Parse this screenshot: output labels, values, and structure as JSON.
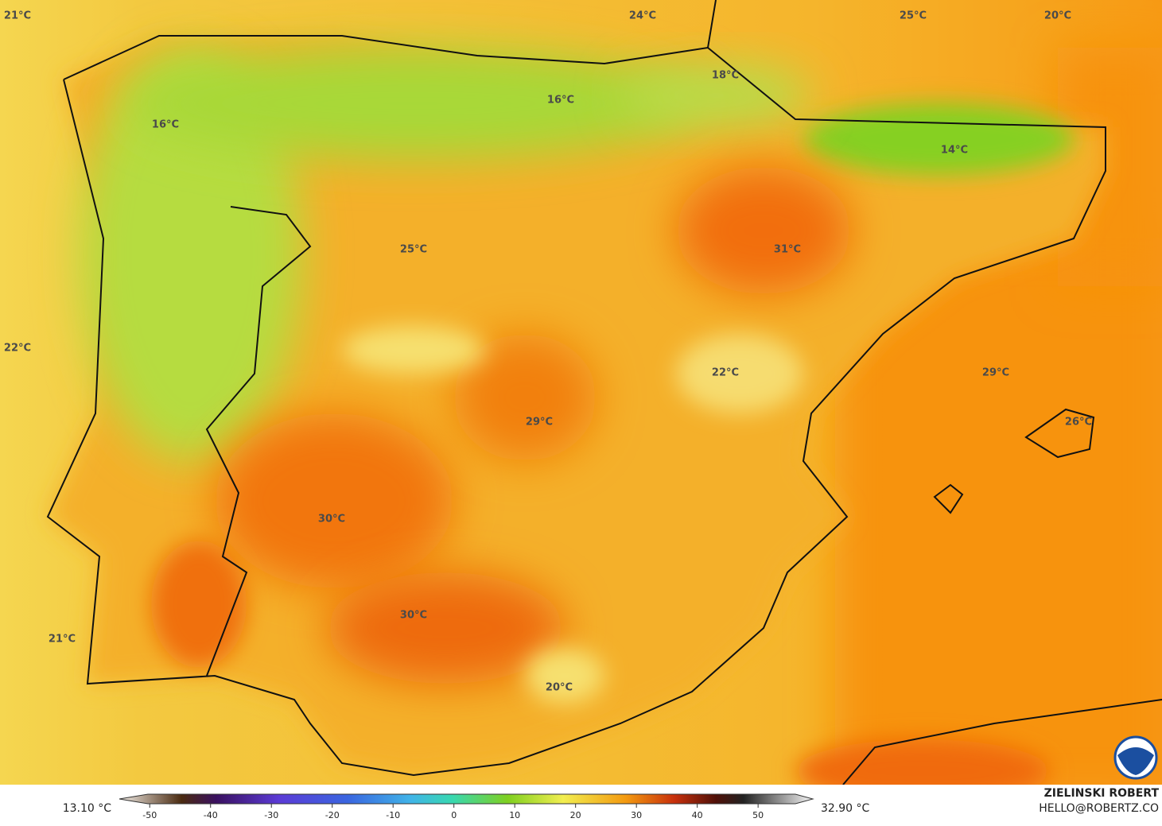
{
  "map_labels": [
    "21°C",
    "24°C",
    "25°C",
    "20°C",
    "18°C",
    "16°C",
    "16°C",
    "14°C",
    "25°C",
    "31°C",
    "22°C",
    "22°C",
    "29°C",
    "29°C",
    "26°C",
    "30°C",
    "30°C",
    "21°C",
    "20°C"
  ],
  "colorbar": {
    "min_label": "13.10 °C",
    "max_label": "32.90 °C",
    "range": [
      -55,
      59
    ],
    "ticks": [
      -50,
      -40,
      -30,
      -20,
      -10,
      0,
      10,
      20,
      30,
      40,
      50
    ]
  },
  "credit": {
    "name": "ZIELINSKI ROBERT",
    "email": "HELLO@ROBERTZ.CO"
  }
}
